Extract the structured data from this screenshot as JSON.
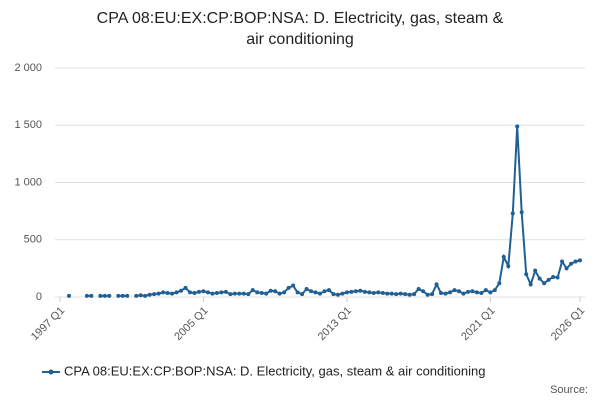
{
  "chart_data": {
    "type": "line",
    "title": "CPA 08:EU:EX:CP:BOP:NSA: D. Electricity, gas, steam & air conditioning",
    "source": "Source:",
    "x": [
      1997,
      1997.25,
      1997.5,
      1997.75,
      1998,
      1998.25,
      1998.5,
      1998.75,
      1999,
      1999.25,
      1999.5,
      1999.75,
      2000,
      2000.25,
      2000.5,
      2000.75,
      2001,
      2001.25,
      2001.5,
      2001.75,
      2002,
      2002.25,
      2002.5,
      2002.75,
      2003,
      2003.25,
      2003.5,
      2003.75,
      2004,
      2004.25,
      2004.5,
      2004.75,
      2005,
      2005.25,
      2005.5,
      2005.75,
      2006,
      2006.25,
      2006.5,
      2006.75,
      2007,
      2007.25,
      2007.5,
      2007.75,
      2008,
      2008.25,
      2008.5,
      2008.75,
      2009,
      2009.25,
      2009.5,
      2009.75,
      2010,
      2010.25,
      2010.5,
      2010.75,
      2011,
      2011.25,
      2011.5,
      2011.75,
      2012,
      2012.25,
      2012.5,
      2012.75,
      2013,
      2013.25,
      2013.5,
      2013.75,
      2014,
      2014.25,
      2014.5,
      2014.75,
      2015,
      2015.25,
      2015.5,
      2015.75,
      2016,
      2016.25,
      2016.5,
      2016.75,
      2017,
      2017.25,
      2017.5,
      2017.75,
      2018,
      2018.25,
      2018.5,
      2018.75,
      2019,
      2019.25,
      2019.5,
      2019.75,
      2020,
      2020.25,
      2020.5,
      2020.75,
      2021,
      2021.25,
      2021.5,
      2021.75,
      2022,
      2022.25,
      2022.5,
      2022.75,
      2023,
      2023.25,
      2023.5,
      2023.75,
      2024,
      2024.25,
      2024.5,
      2024.75,
      2025,
      2025.25,
      2025.5,
      2025.75,
      2026
    ],
    "series": [
      {
        "name": "CPA 08:EU:EX:CP:BOP:NSA: D. Electricity, gas, steam & air conditioning",
        "color": "#206095",
        "values": [
          null,
          null,
          10,
          null,
          null,
          null,
          10,
          10,
          null,
          10,
          10,
          10,
          null,
          10,
          10,
          10,
          null,
          10,
          15,
          10,
          20,
          25,
          30,
          40,
          35,
          30,
          40,
          55,
          80,
          40,
          35,
          45,
          50,
          40,
          30,
          35,
          40,
          45,
          25,
          30,
          30,
          30,
          25,
          60,
          40,
          35,
          30,
          55,
          50,
          30,
          40,
          80,
          100,
          40,
          25,
          70,
          50,
          40,
          30,
          50,
          60,
          25,
          20,
          30,
          40,
          45,
          50,
          55,
          45,
          40,
          35,
          40,
          35,
          30,
          30,
          25,
          30,
          25,
          20,
          25,
          70,
          50,
          20,
          25,
          110,
          35,
          30,
          40,
          60,
          50,
          30,
          45,
          50,
          40,
          35,
          60,
          40,
          60,
          120,
          350,
          270,
          730,
          1490,
          740,
          200,
          110,
          230,
          160,
          120,
          150,
          175,
          170,
          310,
          250,
          290,
          310,
          320
        ]
      }
    ],
    "xlim": [
      1997,
      2026
    ],
    "xticks": [
      {
        "value": 1997,
        "label": "1997 Q1"
      },
      {
        "value": 2005,
        "label": "2005 Q1"
      },
      {
        "value": 2013,
        "label": "2013 Q1"
      },
      {
        "value": 2021,
        "label": "2021 Q1"
      },
      {
        "value": 2026,
        "label": "2026 Q1"
      }
    ],
    "ylim": [
      0,
      2000
    ],
    "yticks": [
      0,
      500,
      {
        "value": 1000,
        "label": "1 000"
      },
      {
        "value": 1500,
        "label": "1 500"
      },
      {
        "value": 2000,
        "label": "2 000"
      }
    ],
    "grid": true
  }
}
